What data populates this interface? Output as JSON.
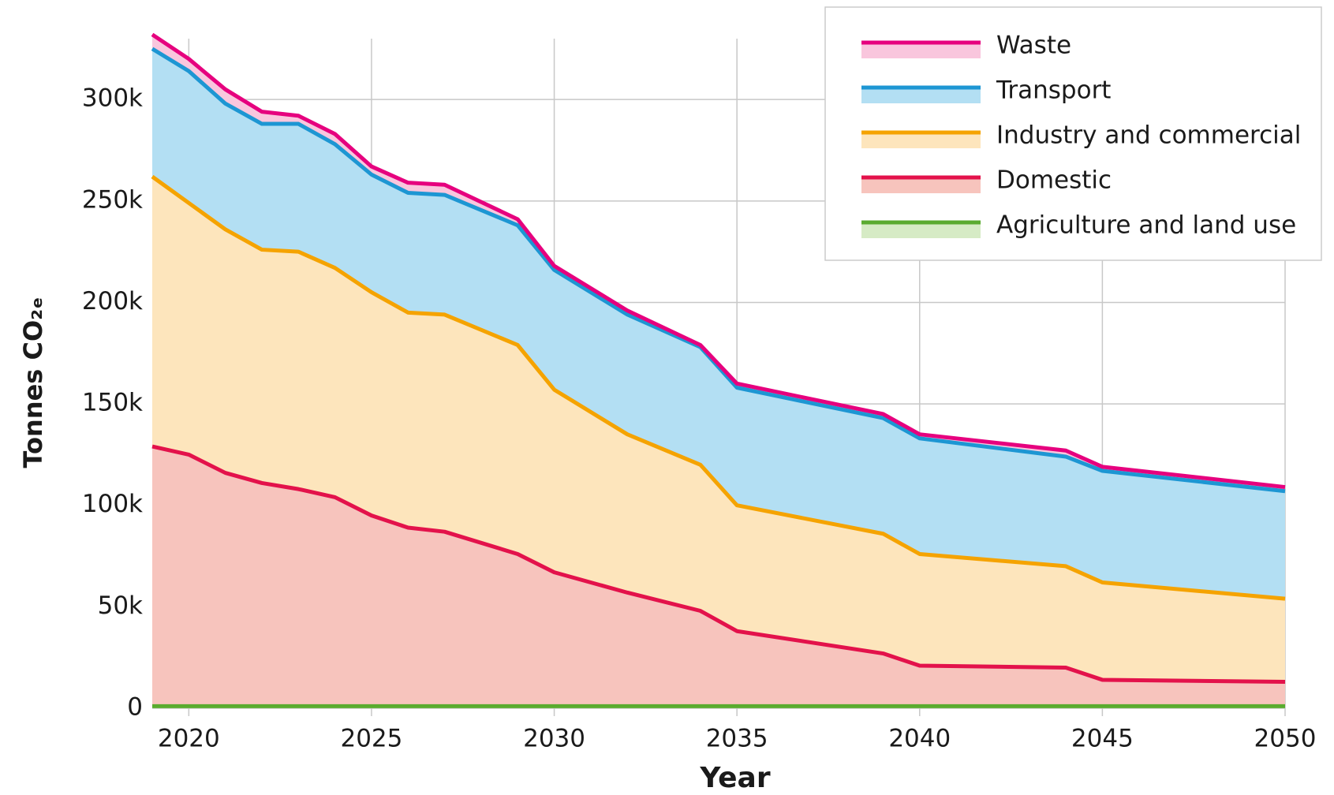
{
  "chart_data": {
    "type": "stacked-area",
    "x_label": "Year",
    "y_label": "Tonnes CO₂ₑ",
    "x": [
      2019,
      2020,
      2021,
      2022,
      2023,
      2024,
      2025,
      2026,
      2027,
      2029,
      2030,
      2032,
      2034,
      2035,
      2039,
      2040,
      2044,
      2045,
      2050
    ],
    "series": [
      {
        "name": "Agriculture and land use",
        "color": "#5aab2f",
        "fill": "#d6ebc5",
        "values": [
          1,
          1,
          1,
          1,
          1,
          1,
          1,
          1,
          1,
          1,
          1,
          1,
          1,
          1,
          1,
          1,
          1,
          1,
          1
        ]
      },
      {
        "name": "Domestic",
        "color": "#e3124b",
        "fill": "#f7c4bd",
        "values": [
          128,
          124,
          115,
          110,
          107,
          103,
          94,
          88,
          86,
          75,
          66,
          56,
          47,
          37,
          26,
          20,
          19,
          13,
          12
        ]
      },
      {
        "name": "Industry and commercial",
        "color": "#f5a300",
        "fill": "#fde5bc",
        "values": [
          133,
          124,
          120,
          115,
          117,
          113,
          110,
          106,
          107,
          103,
          90,
          78,
          72,
          62,
          59,
          55,
          50,
          48,
          41
        ]
      },
      {
        "name": "Transport",
        "color": "#1d96d3",
        "fill": "#b3dff3",
        "values": [
          63,
          65,
          62,
          62,
          63,
          61,
          58,
          59,
          59,
          59,
          59,
          59,
          58,
          58,
          57,
          57,
          54,
          55,
          53
        ]
      },
      {
        "name": "Waste",
        "color": "#e6007e",
        "fill": "#f9c6dd",
        "values": [
          7,
          6,
          7,
          6,
          4,
          5,
          4,
          5,
          5,
          3,
          2,
          2,
          1,
          2,
          2,
          2,
          3,
          2,
          2
        ]
      }
    ],
    "xlim": [
      2019,
      2050
    ],
    "xticks": [
      2020,
      2025,
      2030,
      2035,
      2040,
      2045,
      2050
    ],
    "ylim": [
      0,
      330
    ],
    "yticks": [
      0,
      {
        "value": 50,
        "label": "50k"
      },
      {
        "value": 100,
        "label": "100k"
      },
      {
        "value": 150,
        "label": "150k"
      },
      {
        "value": 200,
        "label": "200k"
      },
      {
        "value": 250,
        "label": "250k"
      },
      {
        "value": 300,
        "label": "300k"
      }
    ],
    "grid": true,
    "legend": "top-right"
  }
}
